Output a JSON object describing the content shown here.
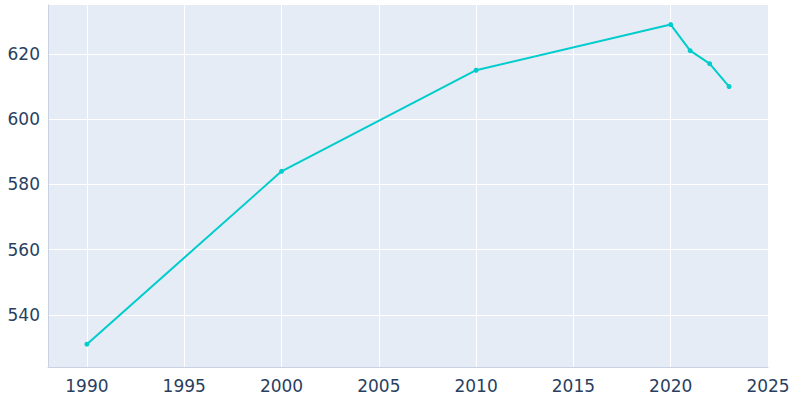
{
  "chart_data": {
    "type": "line",
    "x": [
      1990,
      2000,
      2010,
      2020,
      2021,
      2022,
      2023
    ],
    "values": [
      531,
      584,
      615,
      629,
      621,
      617,
      610
    ],
    "color": "#00cccc",
    "marker": "circle",
    "xlim": [
      1988,
      2025
    ],
    "xticks": [
      1990,
      1995,
      2000,
      2005,
      2010,
      2015,
      2020,
      2025
    ],
    "ylim": [
      524,
      635
    ],
    "yticks": [
      540,
      560,
      580,
      600,
      620
    ],
    "grid": true
  }
}
